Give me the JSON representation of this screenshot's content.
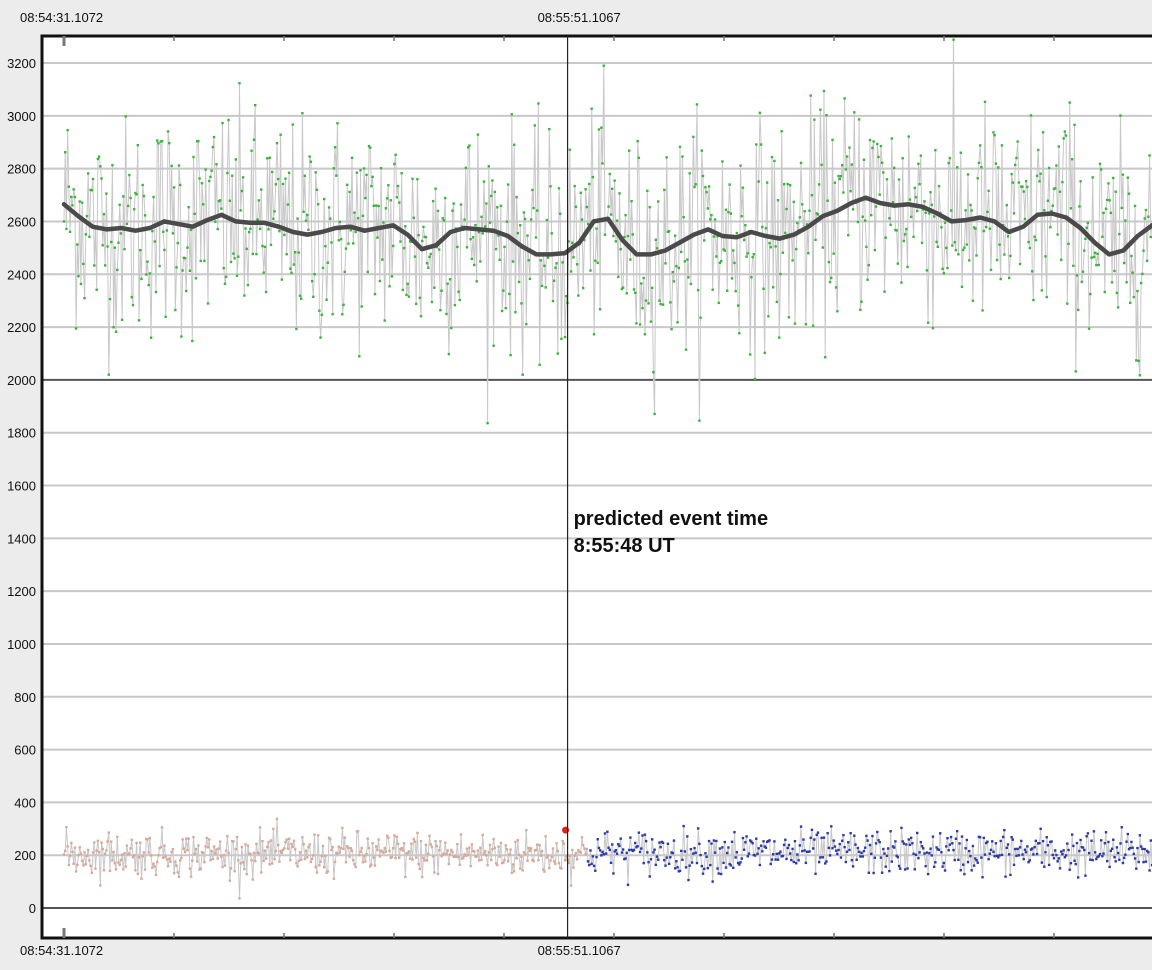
{
  "chart_data": {
    "type": "scatter",
    "x_labels": {
      "start": "08:54:31.1072",
      "cursor": "08:55:51.1067"
    },
    "annotation": {
      "line1": "predicted event time",
      "line2": "8:55:48 UT"
    },
    "ylim": [
      0,
      3200
    ],
    "yticks": [
      0,
      200,
      400,
      600,
      800,
      1000,
      1200,
      1400,
      1600,
      1800,
      2000,
      2200,
      2400,
      2600,
      2800,
      3000,
      3200
    ],
    "grid": true,
    "series": [
      {
        "role": "target",
        "color": "#3cb43c",
        "line_color": "#c8c8c8",
        "mean": 2580,
        "spread": 210
      },
      {
        "role": "smoothed",
        "color": "#4a4a4a",
        "values": [
          2665,
          2620,
          2580,
          2570,
          2575,
          2565,
          2575,
          2600,
          2590,
          2580,
          2605,
          2625,
          2600,
          2595,
          2595,
          2580,
          2560,
          2550,
          2560,
          2575,
          2580,
          2565,
          2575,
          2585,
          2550,
          2495,
          2510,
          2560,
          2575,
          2570,
          2565,
          2545,
          2505,
          2475,
          2475,
          2480,
          2520,
          2600,
          2610,
          2530,
          2475,
          2475,
          2490,
          2520,
          2550,
          2570,
          2545,
          2540,
          2560,
          2545,
          2535,
          2550,
          2580,
          2620,
          2640,
          2670,
          2690,
          2670,
          2660,
          2665,
          2655,
          2630,
          2600,
          2605,
          2615,
          2600,
          2560,
          2580,
          2625,
          2630,
          2615,
          2575,
          2520,
          2475,
          2490,
          2545,
          2585
        ]
      },
      {
        "role": "comparison-before",
        "color": "#d8a896",
        "mean": 205,
        "spread": 70
      },
      {
        "role": "comparison-after",
        "color": "#2a3aa8",
        "mean": 210,
        "spread": 70
      },
      {
        "role": "marker",
        "color": "#e02020",
        "value": 295
      }
    ],
    "cursor_fraction": 0.4735
  }
}
